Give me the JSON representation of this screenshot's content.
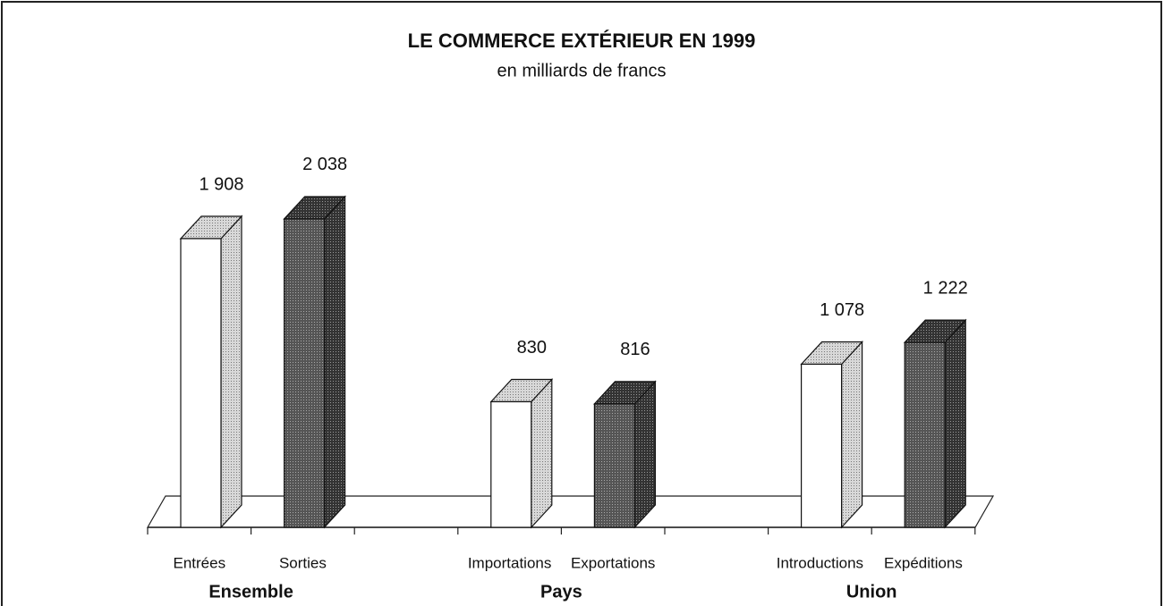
{
  "chart_data": {
    "type": "bar3d",
    "title": "LE COMMERCE EXTÉRIEUR EN 1999",
    "subtitle": "en milliards de francs",
    "categories": [
      "Entrées",
      "Sorties",
      "Importations",
      "Exportations",
      "Introductions",
      "Expéditions"
    ],
    "groups": [
      "Ensemble",
      "Pays",
      "Union"
    ],
    "values": [
      1908,
      2038,
      830,
      816,
      1078,
      1222
    ],
    "value_labels": [
      "1 908",
      "2 038",
      "830",
      "816",
      "1 078",
      "1 222"
    ],
    "colors": [
      "#ffffff",
      "#4a4a4a",
      "#ffffff",
      "#4a4a4a",
      "#ffffff",
      "#4a4a4a"
    ]
  }
}
